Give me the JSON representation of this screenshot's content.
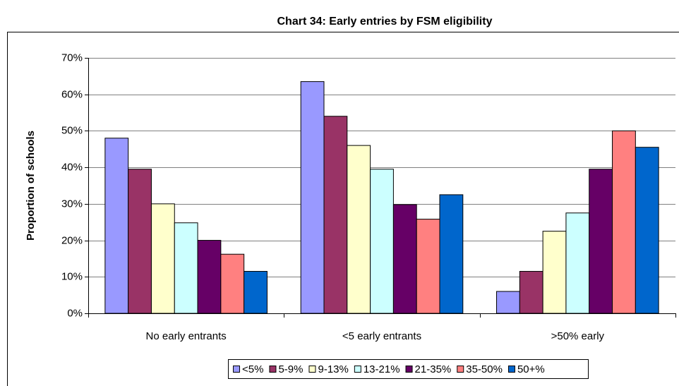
{
  "chart_data": {
    "type": "bar",
    "title": "Chart 34: Early entries by FSM eligibility",
    "y_label": "Proportion of schools",
    "categories": [
      "No early entrants",
      "<5 early entrants",
      ">50% early"
    ],
    "series": [
      {
        "name": "<5%",
        "color": "#9999ff",
        "values": [
          48,
          63.5,
          6
        ]
      },
      {
        "name": "5-9%",
        "color": "#993366",
        "values": [
          39.5,
          54,
          11.5
        ]
      },
      {
        "name": "9-13%",
        "color": "#ffffcc",
        "values": [
          30,
          46,
          22.5
        ]
      },
      {
        "name": "13-21%",
        "color": "#ccffff",
        "values": [
          24.8,
          39.5,
          27.5
        ]
      },
      {
        "name": "21-35%",
        "color": "#660066",
        "values": [
          20,
          29.8,
          39.5
        ]
      },
      {
        "name": "35-50%",
        "color": "#ff8080",
        "values": [
          16.2,
          25.8,
          50
        ]
      },
      {
        "name": "50+%",
        "color": "#0066cc",
        "values": [
          11.5,
          32.5,
          45.5
        ]
      }
    ],
    "ylim": [
      0,
      70
    ],
    "yticks": [
      {
        "value": 0,
        "label": "0%"
      },
      {
        "value": 10,
        "label": "10%"
      },
      {
        "value": 20,
        "label": "20%"
      },
      {
        "value": 30,
        "label": "30%"
      },
      {
        "value": 40,
        "label": "40%"
      },
      {
        "value": 50,
        "label": "50%"
      },
      {
        "value": 60,
        "label": "60%"
      },
      {
        "value": 70,
        "label": "70%"
      }
    ],
    "grid": true
  }
}
